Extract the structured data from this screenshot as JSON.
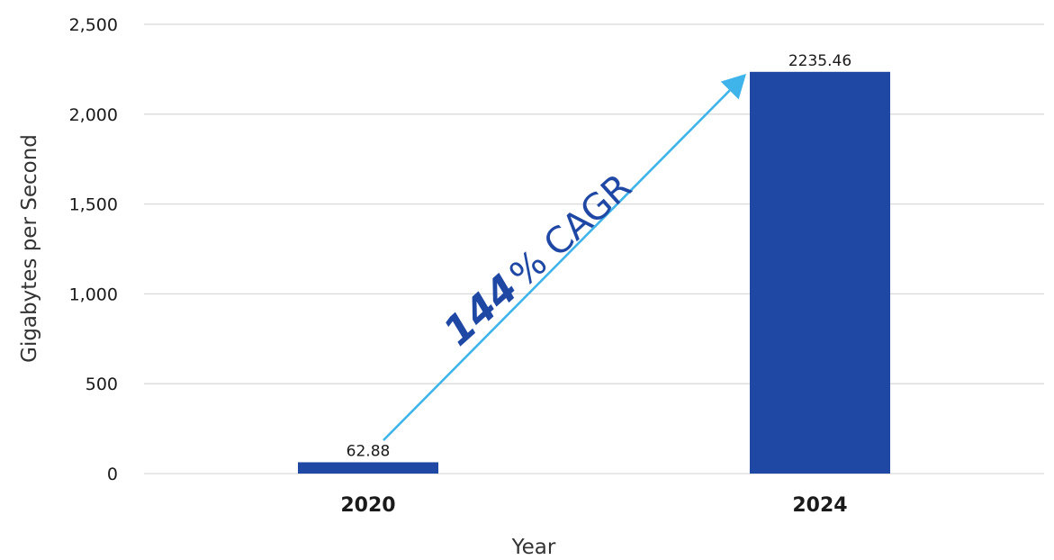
{
  "chart_data": {
    "type": "bar",
    "categories": [
      "2020",
      "2024"
    ],
    "values": [
      62.88,
      2235.46
    ],
    "data_labels": [
      "62.88",
      "2235.46"
    ],
    "xlabel": "Year",
    "ylabel": "Gigabytes per Second",
    "ylim": [
      0,
      2500
    ],
    "yticks": [
      0,
      500,
      1000,
      1500,
      2000,
      2500
    ],
    "ytick_labels": [
      "0",
      "500",
      "1,000",
      "1,500",
      "2,000",
      "2,500"
    ],
    "grid": "horizontal",
    "legend": "none",
    "annotation": {
      "number": "144",
      "suffix": "% CAGR",
      "from_category": "2020",
      "to_category": "2024"
    }
  },
  "colors": {
    "bar": "#1f48a5",
    "gridline": "#d9d9d9",
    "arrow": "#3fb4ea",
    "annotation_text": "#1f48a5"
  }
}
